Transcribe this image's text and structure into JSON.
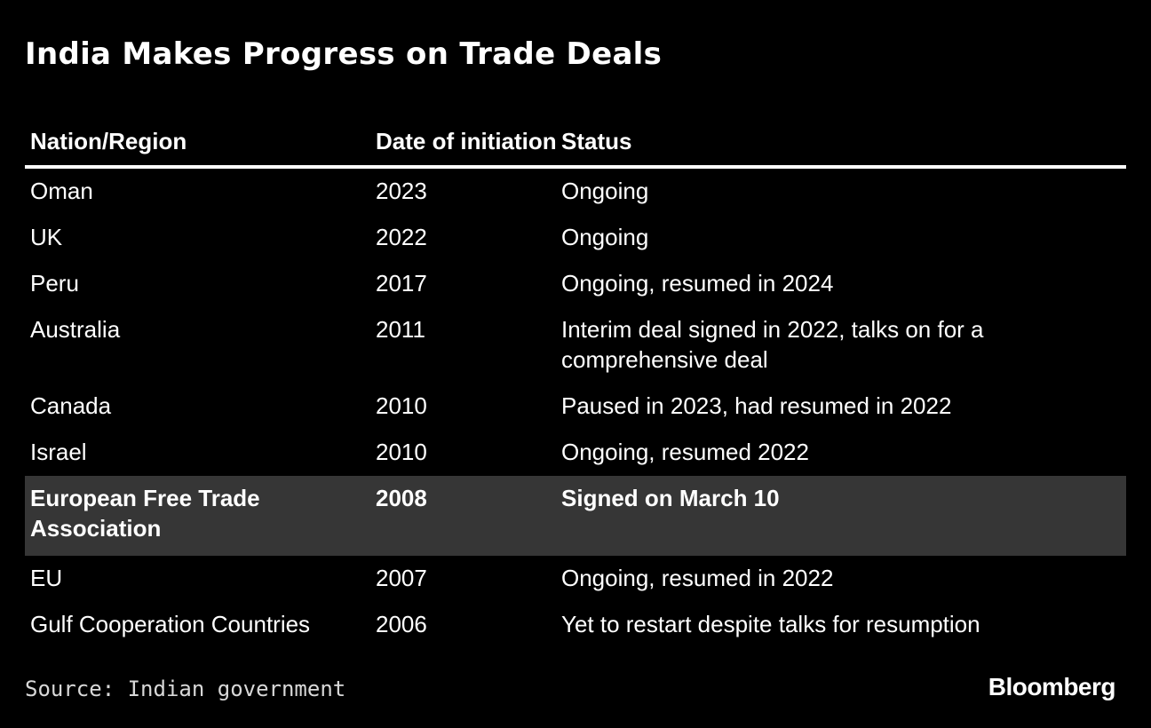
{
  "chart_data": {
    "type": "table",
    "title": "India Makes Progress on Trade Deals",
    "columns": [
      "Nation/Region",
      "Date of initiation",
      "Status"
    ],
    "rows": [
      {
        "nation": "Oman",
        "date": "2023",
        "status": "Ongoing",
        "highlight": false
      },
      {
        "nation": "UK",
        "date": "2022",
        "status": "Ongoing",
        "highlight": false
      },
      {
        "nation": "Peru",
        "date": "2017",
        "status": "Ongoing, resumed in 2024",
        "highlight": false
      },
      {
        "nation": "Australia",
        "date": "2011",
        "status": "Interim deal signed in 2022, talks on for a comprehensive deal",
        "highlight": false
      },
      {
        "nation": "Canada",
        "date": "2010",
        "status": "Paused in 2023, had resumed in 2022",
        "highlight": false
      },
      {
        "nation": "Israel",
        "date": "2010",
        "status": "Ongoing, resumed 2022",
        "highlight": false
      },
      {
        "nation": "European Free Trade Association",
        "date": "2008",
        "status": "Signed on March 10",
        "highlight": true
      },
      {
        "nation": "EU",
        "date": "2007",
        "status": "Ongoing, resumed in 2022",
        "highlight": false
      },
      {
        "nation": "Gulf Cooperation Countries",
        "date": "2006",
        "status": "Yet to restart despite talks for resumption",
        "highlight": false
      }
    ],
    "source": "Source: Indian government",
    "brand": "Bloomberg"
  },
  "colors": {
    "background": "#000000",
    "text": "#ffffff",
    "highlight_row": "#363636",
    "source_text": "#d8d8d8"
  }
}
